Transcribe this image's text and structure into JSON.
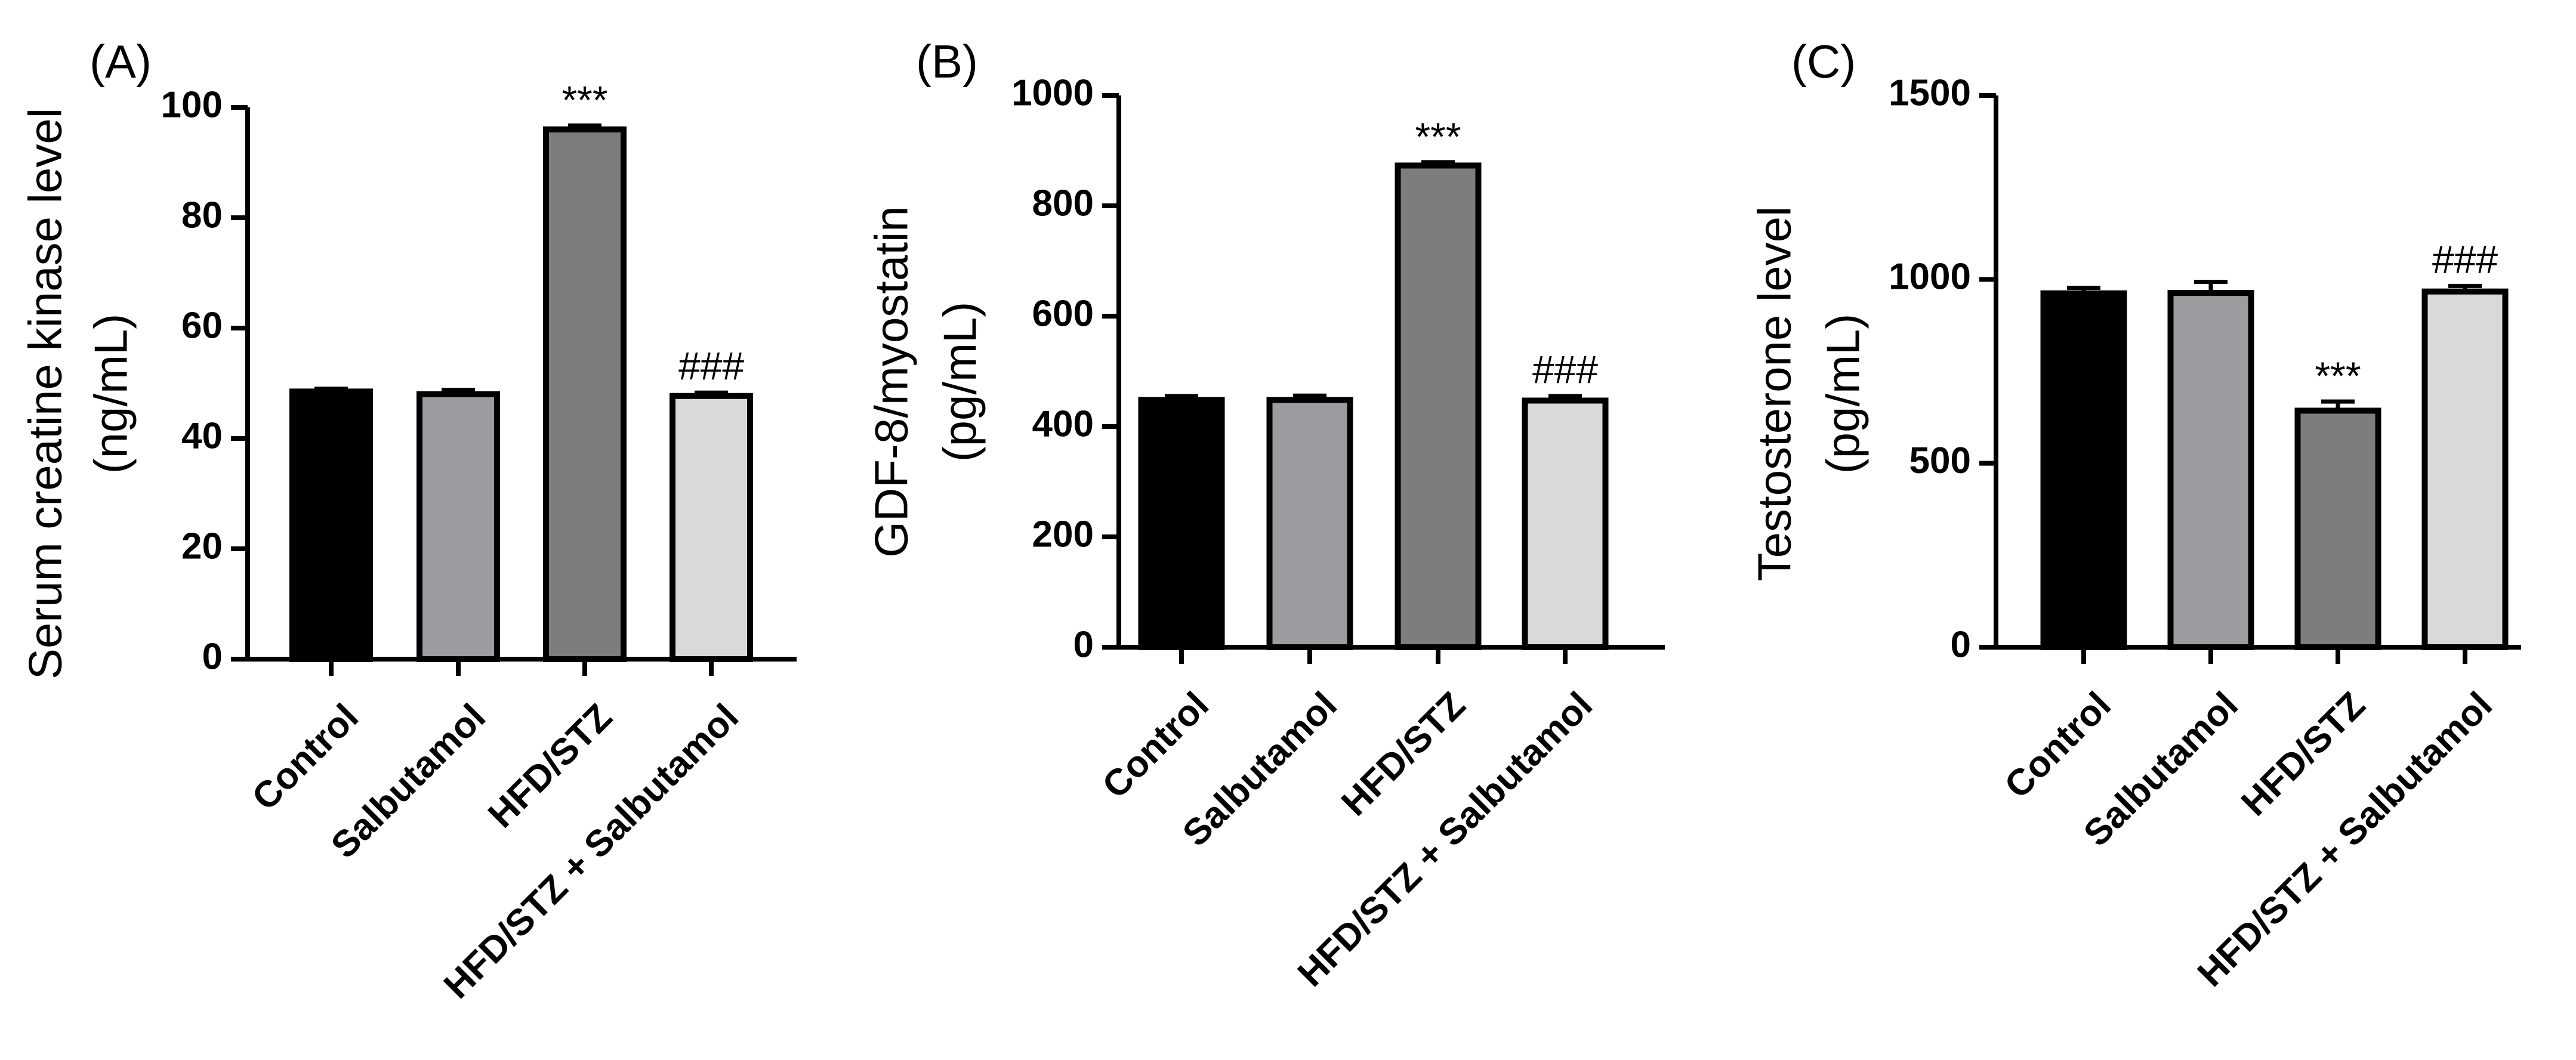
{
  "chart_data": [
    {
      "type": "bar",
      "panel": "(A)",
      "ylabel_lines": [
        "Serum creatine kinase level",
        "(ng/mL)"
      ],
      "ylim": [
        0,
        100
      ],
      "yticks": [
        "0",
        "20",
        "40",
        "60",
        "80",
        "100"
      ],
      "categories": [
        "Control",
        "Salbutamol",
        "HFD/STZ",
        "HFD/STZ + Salbutamol"
      ],
      "values": [
        48.5,
        48.0,
        96.0,
        47.7
      ],
      "errors": [
        0.5,
        0.8,
        0.7,
        0.6
      ],
      "bar_colors": [
        "#000000",
        "#9c9ca0",
        "#7d7d7d",
        "#d9d9d9"
      ],
      "annotations": [
        "",
        "",
        "***",
        "###"
      ]
    },
    {
      "type": "bar",
      "panel": "(B)",
      "ylabel_lines": [
        "GDF-8/myostatin",
        "(pg/mL)"
      ],
      "ylim": [
        0,
        1000
      ],
      "yticks": [
        "0",
        "200",
        "400",
        "600",
        "800",
        "1000"
      ],
      "categories": [
        "Control",
        "Salbutamol",
        "HFD/STZ",
        "HFD/STZ + Salbutamol"
      ],
      "values": [
        448,
        448,
        873,
        447
      ],
      "errors": [
        7,
        8,
        6,
        8
      ],
      "bar_colors": [
        "#000000",
        "#9c9ca0",
        "#7d7d7d",
        "#d9d9d9"
      ],
      "annotations": [
        "",
        "",
        "***",
        "###"
      ]
    },
    {
      "type": "bar",
      "panel": "(C)",
      "ylabel_lines": [
        "Testosterone level",
        "(pg/mL)"
      ],
      "ylim": [
        0,
        1500
      ],
      "yticks": [
        "0",
        "500",
        "1000",
        "1500"
      ],
      "categories": [
        "Control",
        "Salbutamol",
        "HFD/STZ",
        "HFD/STZ + Salbutamol"
      ],
      "values": [
        962,
        963,
        643,
        967
      ],
      "errors": [
        15,
        30,
        25,
        15
      ],
      "bar_colors": [
        "#000000",
        "#9c9ca0",
        "#7d7d7d",
        "#d9d9d9"
      ],
      "annotations": [
        "",
        "",
        "***",
        "###"
      ]
    }
  ]
}
